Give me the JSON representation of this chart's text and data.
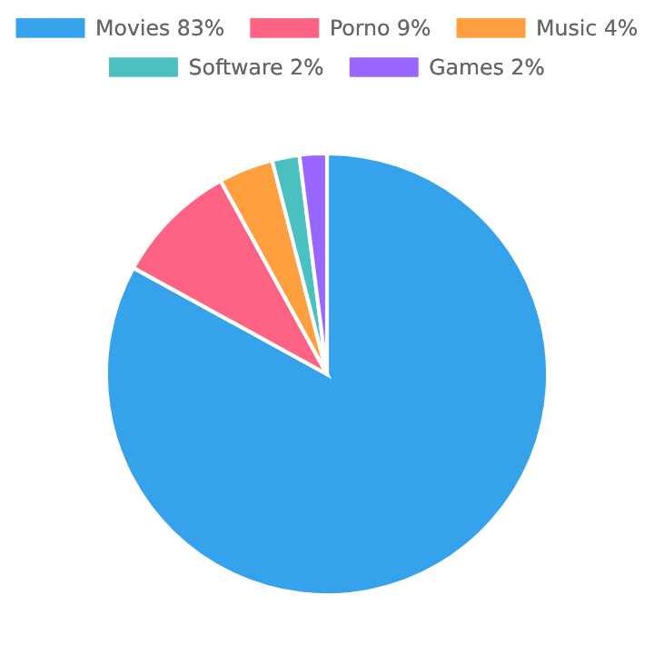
{
  "chart_data": {
    "type": "pie",
    "categories": [
      "Movies 83%",
      "Porno 9%",
      "Music 4%",
      "Software 2%",
      "Games 2%"
    ],
    "values": [
      83,
      9,
      4,
      2,
      2
    ],
    "colors": [
      "#36a2eb",
      "#ff6384",
      "#ff9f40",
      "#4bc0c0",
      "#9966ff"
    ],
    "legend": "top"
  }
}
